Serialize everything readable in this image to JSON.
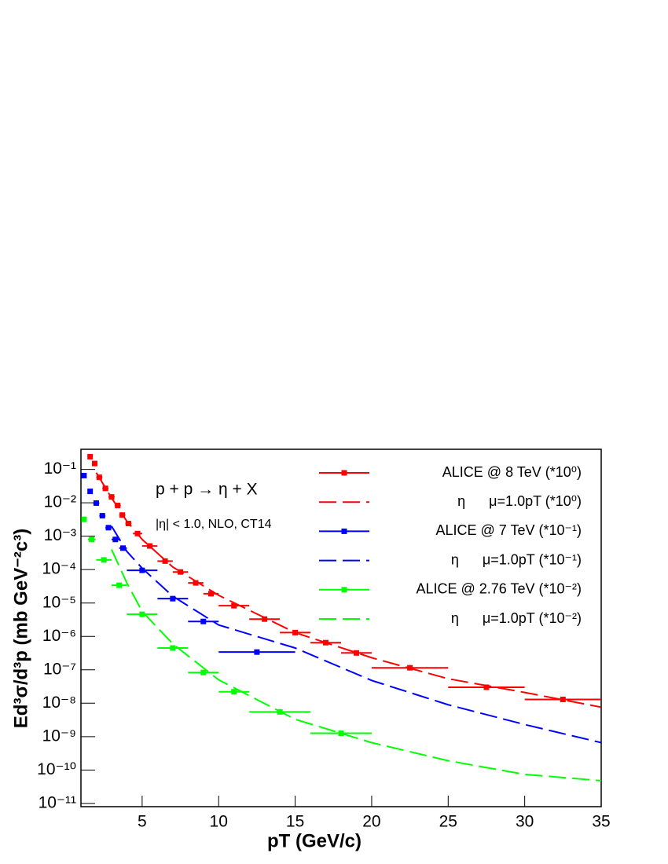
{
  "chart_data": {
    "type": "scatter",
    "x_label": "pT (GeV/c)",
    "y_label": "Ed³σ/d³p (mb GeV⁻²c³)",
    "annotations": [
      "p + p → η + X",
      "|η| < 1.0, NLO, CT14"
    ],
    "log_y": true,
    "xlim": [
      1,
      35
    ],
    "ylim": [
      8e-12,
      0.4
    ],
    "xticks": [
      5,
      10,
      15,
      20,
      25,
      30,
      35
    ],
    "yticks": [
      {
        "value": 0.1,
        "label": "10⁻¹"
      },
      {
        "value": 0.01,
        "label": "10⁻²"
      },
      {
        "value": 0.001,
        "label": "10⁻³"
      },
      {
        "value": 0.0001,
        "label": "10⁻⁴"
      },
      {
        "value": 1e-05,
        "label": "10⁻⁵"
      },
      {
        "value": 1e-06,
        "label": "10⁻⁶"
      },
      {
        "value": 1e-07,
        "label": "10⁻⁷"
      },
      {
        "value": 1e-08,
        "label": "10⁻⁸"
      },
      {
        "value": 1e-09,
        "label": "10⁻⁹"
      },
      {
        "value": 1e-10,
        "label": "10⁻¹⁰"
      },
      {
        "value": 1e-11,
        "label": "10⁻¹¹"
      }
    ],
    "series": [
      {
        "name": "ALICE @ 8 TeV (*10⁰)",
        "color": "#ff0000",
        "style": "points",
        "x": [
          1.6,
          1.9,
          2.2,
          2.6,
          3.0,
          3.4,
          3.7,
          4.1,
          4.7,
          5.5,
          6.5,
          7.5,
          8.5,
          9.5,
          11,
          13,
          15,
          17,
          19,
          22.5,
          27.5,
          32.5
        ],
        "xerr": [
          0.1,
          0.1,
          0.2,
          0.2,
          0.2,
          0.2,
          0.2,
          0.2,
          0.3,
          0.5,
          0.5,
          0.5,
          0.5,
          0.5,
          1,
          1,
          1,
          1,
          1,
          2.5,
          2.5,
          2.5
        ],
        "values": [
          0.24,
          0.15,
          0.058,
          0.027,
          0.015,
          0.0083,
          0.0043,
          0.0024,
          0.0012,
          0.00051,
          0.00018,
          8.5e-05,
          4e-05,
          1.9e-05,
          8.3e-06,
          3.3e-06,
          1.3e-06,
          6.5e-07,
          3.2e-07,
          1.15e-07,
          3e-08,
          1.3e-08
        ]
      },
      {
        "name": "η      μ=1.0pT (*10⁰)",
        "color": "#ff0000",
        "style": "dashed",
        "x": [
          2,
          3,
          4,
          5,
          7,
          10,
          15,
          20,
          25,
          30,
          35
        ],
        "values": [
          0.08,
          0.014,
          0.0028,
          0.0008,
          0.00012,
          1.7e-05,
          1.3e-06,
          2.3e-07,
          5.4e-08,
          2.1e-08,
          7.6e-09
        ]
      },
      {
        "name": "ALICE @ 7 TeV (*10⁻¹)",
        "color": "#0000ff",
        "style": "points",
        "x": [
          1.2,
          1.6,
          2.0,
          2.4,
          2.8,
          3.25,
          3.75,
          5,
          7,
          9,
          12.5
        ],
        "xerr": [
          0.1,
          0.1,
          0.2,
          0.2,
          0.2,
          0.25,
          0.25,
          1,
          1,
          1,
          2.5
        ],
        "values": [
          0.065,
          0.022,
          0.0098,
          0.0041,
          0.0018,
          0.0008,
          0.00044,
          9.5e-05,
          1.35e-05,
          2.8e-06,
          3.4e-07
        ]
      },
      {
        "name": "η      μ=1.0pT (*10⁻¹)",
        "color": "#0000ff",
        "style": "dashed",
        "x": [
          3,
          4,
          5,
          7,
          10,
          15,
          20,
          25,
          30,
          35
        ],
        "values": [
          0.002,
          0.00035,
          0.00011,
          1.6e-05,
          2.2e-06,
          4.5e-07,
          4.8e-08,
          9e-09,
          2.3e-09,
          6.6e-10
        ]
      },
      {
        "name": "ALICE @ 2.76 TeV (*10⁻²)",
        "color": "#00ff00",
        "style": "points",
        "x": [
          1.2,
          1.7,
          2.5,
          3.5,
          5,
          7,
          9,
          11,
          14,
          18
        ],
        "xerr": [
          0.1,
          0.25,
          0.5,
          0.5,
          1,
          1,
          1,
          1,
          2,
          2
        ],
        "values": [
          0.0032,
          0.0008,
          0.000195,
          3.4e-05,
          4.6e-06,
          4.5e-07,
          8.3e-08,
          2.2e-08,
          5.5e-09,
          1.26e-09
        ]
      },
      {
        "name": "η      μ=1.0pT (*10⁻²)",
        "color": "#00ff00",
        "style": "dashed",
        "x": [
          3,
          4,
          5,
          7,
          10,
          15,
          20,
          25,
          30,
          35
        ],
        "values": [
          0.0004,
          4e-05,
          5.6e-06,
          6e-07,
          5e-08,
          3.3e-09,
          6.6e-10,
          1.9e-10,
          7.4e-11,
          4.8e-11
        ]
      }
    ]
  }
}
